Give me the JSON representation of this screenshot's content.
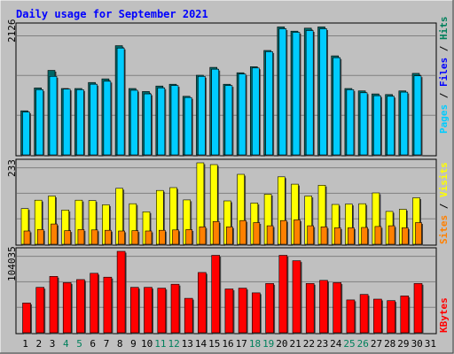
{
  "chart_data": {
    "type": "bar",
    "title": "Daily usage for September 2021",
    "categories": [
      "1",
      "2",
      "3",
      "4",
      "5",
      "6",
      "7",
      "8",
      "9",
      "10",
      "11",
      "12",
      "13",
      "14",
      "15",
      "16",
      "17",
      "18",
      "19",
      "20",
      "21",
      "22",
      "23",
      "24",
      "25",
      "26",
      "27",
      "28",
      "29",
      "30",
      "31"
    ],
    "weekend_days": [
      "4",
      "5",
      "11",
      "12",
      "18",
      "19",
      "25",
      "26"
    ],
    "panels": [
      {
        "id": "top",
        "ylabel_parts": [
          "Pages",
          "Files",
          "Hits"
        ],
        "max_label": "2126",
        "ylim": [
          0,
          2126
        ],
        "series": [
          {
            "name": "Hits",
            "color": "#006666",
            "values": [
              730,
              1110,
              1400,
              1100,
              1100,
              1200,
              1260,
              1810,
              1100,
              1050,
              1140,
              1170,
              970,
              1320,
              1450,
              1170,
              1360,
              1460,
              1730,
              2120,
              2050,
              2100,
              2120,
              1640,
              1100,
              1060,
              1010,
              1000,
              1060,
              1350,
              0
            ]
          },
          {
            "name": "Files",
            "color": "#00ccff",
            "values": [
              710,
              1080,
              1300,
              1090,
              1080,
              1170,
              1220,
              1770,
              1070,
              1010,
              1110,
              1150,
              950,
              1300,
              1420,
              1150,
              1340,
              1440,
              1710,
              2090,
              2030,
              2060,
              2090,
              1610,
              1080,
              1030,
              980,
              970,
              1040,
              1310,
              0
            ]
          }
        ]
      },
      {
        "id": "middle",
        "ylabel_parts": [
          "Sites",
          "Visits"
        ],
        "max_label": "233",
        "ylim": [
          0,
          233
        ],
        "series": [
          {
            "name": "Visits",
            "color": "#ffff00",
            "values": [
              102,
              126,
              138,
              98,
              126,
              125,
              113,
              160,
              116,
              93,
              154,
              162,
              127,
              233,
              228,
              124,
              200,
              118,
              143,
              193,
              172,
              138,
              169,
              114,
              115,
              116,
              147,
              94,
              100,
              133,
              0
            ]
          },
          {
            "name": "Sites",
            "color": "#ff8000",
            "values": [
              38,
              42,
              58,
              39,
              42,
              41,
              40,
              38,
              39,
              38,
              40,
              41,
              42,
              50,
              65,
              50,
              68,
              62,
              53,
              68,
              70,
              53,
              50,
              47,
              47,
              48,
              51,
              53,
              47,
              62,
              0
            ]
          }
        ]
      },
      {
        "id": "bottom",
        "ylabel_parts": [
          "KBytes"
        ],
        "max_label": "104035",
        "ylim": [
          0,
          104035
        ],
        "series": [
          {
            "name": "KBytes",
            "color": "#ff0000",
            "values": [
              38000,
              58000,
              72000,
              64000,
              68000,
              76000,
              71000,
              104035,
              58000,
              58000,
              57000,
              62000,
              44000,
              77000,
              99000,
              56000,
              57000,
              51000,
              63000,
              99000,
              92000,
              63000,
              67000,
              64000,
              42000,
              49000,
              43000,
              41000,
              47000,
              63000,
              0
            ]
          }
        ]
      }
    ]
  },
  "colors": {
    "background": "#c0c0c0",
    "title": "#0000ff",
    "axis_text": "#000000",
    "weekend_day": "#00805c",
    "gridline": "#808080"
  }
}
